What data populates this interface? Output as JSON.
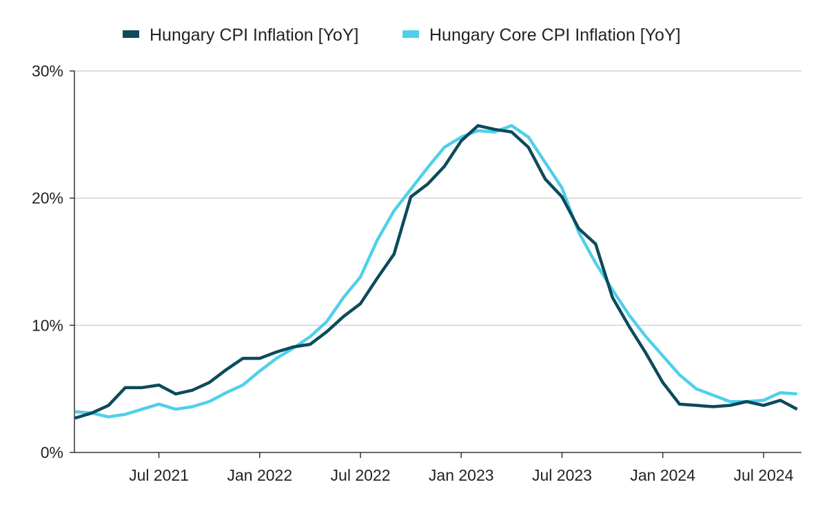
{
  "chart_data": {
    "type": "line",
    "x": [
      "2021-02",
      "2021-03",
      "2021-04",
      "2021-05",
      "2021-06",
      "2021-07",
      "2021-08",
      "2021-09",
      "2021-10",
      "2021-11",
      "2021-12",
      "2022-01",
      "2022-02",
      "2022-03",
      "2022-04",
      "2022-05",
      "2022-06",
      "2022-07",
      "2022-08",
      "2022-09",
      "2022-10",
      "2022-11",
      "2022-12",
      "2023-01",
      "2023-02",
      "2023-03",
      "2023-04",
      "2023-05",
      "2023-06",
      "2023-07",
      "2023-08",
      "2023-09",
      "2023-10",
      "2023-11",
      "2023-12",
      "2024-01",
      "2024-02",
      "2024-03",
      "2024-04",
      "2024-05",
      "2024-06",
      "2024-07",
      "2024-08",
      "2024-09"
    ],
    "series": [
      {
        "name": "Hungary CPI Inflation [YoY]",
        "color": "#0d4a5c",
        "values": [
          2.7,
          3.1,
          3.7,
          5.1,
          5.1,
          5.3,
          4.6,
          4.9,
          5.5,
          6.5,
          7.4,
          7.4,
          7.9,
          8.3,
          8.5,
          9.5,
          10.7,
          11.7,
          13.7,
          15.6,
          20.1,
          21.1,
          22.5,
          24.5,
          25.7,
          25.4,
          25.2,
          24.0,
          21.5,
          20.1,
          17.6,
          16.4,
          12.2,
          9.9,
          7.8,
          5.5,
          3.8,
          3.7,
          3.6,
          3.7,
          4.0,
          3.7,
          4.1,
          3.4
        ]
      },
      {
        "name": "Hungary Core CPI Inflation [YoY]",
        "color": "#4fd0ea",
        "values": [
          3.2,
          3.1,
          2.8,
          3.0,
          3.4,
          3.8,
          3.4,
          3.6,
          4.0,
          4.7,
          5.3,
          6.4,
          7.4,
          8.2,
          9.1,
          10.3,
          12.2,
          13.8,
          16.7,
          19.0,
          20.7,
          22.4,
          24.0,
          24.8,
          25.3,
          25.2,
          25.7,
          24.8,
          22.8,
          20.8,
          17.3,
          14.9,
          12.8,
          10.8,
          9.1,
          7.6,
          6.1,
          5.0,
          4.5,
          4.0,
          4.0,
          4.1,
          4.7,
          4.6
        ]
      }
    ],
    "y_ticks": [
      "0%",
      "10%",
      "20%",
      "30%"
    ],
    "y_tick_values": [
      0,
      10,
      20,
      30
    ],
    "x_ticks": [
      "Jul 2021",
      "Jan 2022",
      "Jul 2022",
      "Jan 2023",
      "Jul 2023",
      "Jan 2024",
      "Jul 2024"
    ],
    "x_tick_dates": [
      "2021-07",
      "2022-01",
      "2022-07",
      "2023-01",
      "2023-07",
      "2024-01",
      "2024-07"
    ],
    "ylim": [
      0,
      30
    ],
    "xlim": [
      "2021-02",
      "2024-09"
    ],
    "grid": "horizontal",
    "legend_position": "top-center"
  }
}
